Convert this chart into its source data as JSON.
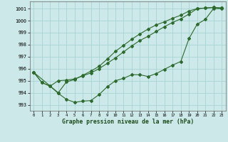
{
  "background_color": "#cce8e8",
  "grid_color": "#a8d4d4",
  "line_color": "#2d6a2d",
  "ylabel_ticks": [
    993,
    994,
    995,
    996,
    997,
    998,
    999,
    1000,
    1001
  ],
  "xlabel_ticks": [
    0,
    1,
    2,
    3,
    4,
    5,
    6,
    7,
    8,
    9,
    10,
    11,
    12,
    13,
    14,
    15,
    16,
    17,
    18,
    19,
    20,
    21,
    22,
    23
  ],
  "xlabel_label": "Graphe pression niveau de la mer (hPa)",
  "ylim": [
    992.5,
    1001.6
  ],
  "xlim": [
    -0.5,
    23.5
  ],
  "line1_x": [
    0,
    1,
    2,
    3,
    4,
    5,
    6,
    7,
    8,
    9,
    10,
    11,
    12,
    13,
    14,
    15,
    16,
    17,
    18,
    19,
    20,
    21,
    22,
    23
  ],
  "line1_y": [
    995.7,
    994.85,
    994.55,
    993.95,
    993.45,
    993.2,
    993.3,
    993.35,
    993.85,
    994.5,
    995.0,
    995.2,
    995.5,
    995.5,
    995.35,
    995.6,
    995.95,
    996.3,
    996.6,
    998.5,
    999.7,
    1000.1,
    1001.0,
    1001.0
  ],
  "line2_x": [
    0,
    1,
    2,
    3,
    4,
    5,
    6,
    7,
    8,
    9,
    10,
    11,
    12,
    13,
    14,
    15,
    16,
    17,
    18,
    19,
    20,
    21,
    22,
    23
  ],
  "line2_y": [
    995.7,
    994.85,
    994.55,
    995.0,
    995.05,
    995.15,
    995.4,
    995.65,
    996.0,
    996.45,
    996.9,
    997.4,
    997.9,
    998.35,
    998.7,
    999.1,
    999.5,
    999.85,
    1000.15,
    1000.55,
    1001.0,
    1001.05,
    1001.1,
    1001.05
  ],
  "line3_x": [
    0,
    3,
    4,
    5,
    6,
    7,
    8,
    9,
    10,
    11,
    12,
    13,
    14,
    15,
    16,
    17,
    18,
    19,
    20,
    21,
    22,
    23
  ],
  "line3_y": [
    995.7,
    994.0,
    994.9,
    995.1,
    995.45,
    995.8,
    996.2,
    996.8,
    997.45,
    997.95,
    998.45,
    998.9,
    999.3,
    999.65,
    999.9,
    1000.2,
    1000.45,
    1000.8,
    1001.0,
    1001.05,
    1001.1,
    1001.05
  ]
}
